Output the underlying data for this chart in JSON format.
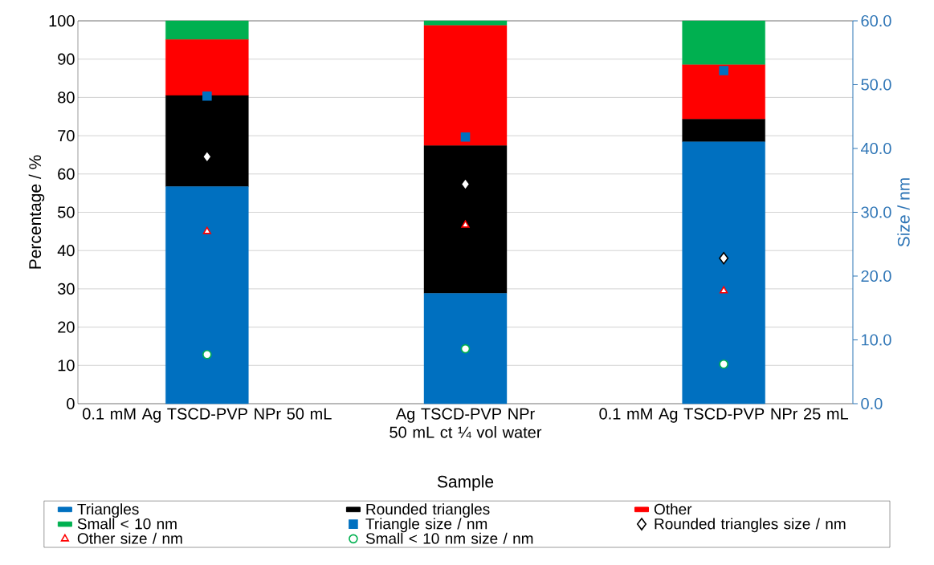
{
  "chart_data": {
    "type": "bar",
    "stacked": true,
    "xlabel": "Sample",
    "ylabel": "Percentage / %",
    "y2label": "Size / nm",
    "categories": [
      "0.1 mM Ag TSCD-PVP NPr 50 mL",
      "Ag TSCD-PVP NPr 50 mL ct ¼ vol water",
      "0.1 mM Ag TSCD-PVP NPr 25 mL"
    ],
    "series": [
      {
        "name": "Triangles",
        "color": "#0070c0",
        "values": [
          56.7,
          28.8,
          68.4
        ]
      },
      {
        "name": "Rounded triangles",
        "color": "#000000",
        "values": [
          23.8,
          38.6,
          5.9
        ]
      },
      {
        "name": "Other",
        "color": "#ff0000",
        "values": [
          14.6,
          31.4,
          14.2
        ]
      },
      {
        "name": "Small < 10 nm",
        "color": "#00b050",
        "values": [
          4.9,
          1.2,
          11.5
        ]
      },
      {
        "name": "Triangle size / nm",
        "type": "scatter",
        "axis": "y2",
        "marker": "square",
        "color": "#0070c0",
        "values": [
          48.2,
          41.8,
          52.2
        ]
      },
      {
        "name": "Rounded triangles size / nm",
        "type": "scatter",
        "axis": "y2",
        "marker": "diamond",
        "color": "#000000",
        "values": [
          38.7,
          34.4,
          22.8
        ]
      },
      {
        "name": "Other size / nm",
        "type": "scatter",
        "axis": "y2",
        "marker": "triangle",
        "color": "#ff0000",
        "values": [
          27.0,
          28.0,
          17.7
        ]
      },
      {
        "name": "Small < 10 nm size / nm",
        "type": "scatter",
        "axis": "y2",
        "marker": "circle",
        "color": "#00b050",
        "values": [
          7.7,
          8.6,
          6.2
        ]
      }
    ],
    "ylim": [
      0,
      100
    ],
    "yticks": [
      0,
      10,
      20,
      30,
      40,
      50,
      60,
      70,
      80,
      90,
      100
    ],
    "y2lim": [
      0,
      60
    ],
    "y2ticks": [
      {
        "value": 0,
        "label": "0.0"
      },
      {
        "value": 10,
        "label": "10.0"
      },
      {
        "value": 20,
        "label": "20.0"
      },
      {
        "value": 30,
        "label": "30.0"
      },
      {
        "value": 40,
        "label": "40.0"
      },
      {
        "value": 50,
        "label": "50.0"
      },
      {
        "value": 60,
        "label": "60.0"
      }
    ],
    "grid": true,
    "legend": "bottom"
  }
}
